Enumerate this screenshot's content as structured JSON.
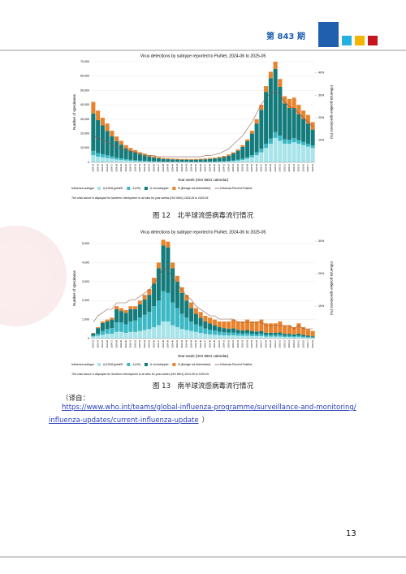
{
  "header": {
    "issue": "第 843 期"
  },
  "chart_data": [
    {
      "type": "bar",
      "stacked": true,
      "title": "Virus detections by subtype reported to FluNet, 2024-06 to 2025-05",
      "y_label": "Number of specimens",
      "y2_label": "Influenza positive specimens (%)",
      "x_label": "Year-week (ISO 8601 calendar)",
      "legend_title": "Influenza subtype",
      "note": "The chart above is displayed for Northern Hemisphere in all sites for year-weeks (ISO 8601) 2024-06 to 2025-05",
      "caption": "图 12　北半球流感病毒流行情况",
      "categories": [
        "2024-23",
        "2024-24",
        "2024-25",
        "2024-26",
        "2024-27",
        "2024-28",
        "2024-29",
        "2024-30",
        "2024-31",
        "2024-32",
        "2024-33",
        "2024-34",
        "2024-35",
        "2024-36",
        "2024-37",
        "2024-38",
        "2024-39",
        "2024-40",
        "2024-41",
        "2024-42",
        "2024-43",
        "2024-44",
        "2024-45",
        "2024-46",
        "2024-47",
        "2024-48",
        "2024-49",
        "2024-50",
        "2024-51",
        "2024-52",
        "2025-01",
        "2025-02",
        "2025-03",
        "2025-04",
        "2025-05",
        "2025-06",
        "2025-07",
        "2025-08",
        "2025-09",
        "2025-10",
        "2025-11",
        "2025-12",
        "2025-13",
        "2025-14",
        "2025-15",
        "2025-16",
        "2025-17",
        "2025-18"
      ],
      "ylim": [
        0,
        70000
      ],
      "yticks": [
        0,
        {
          "value": 10000,
          "label": "10,000"
        },
        {
          "value": 20000,
          "label": "20,000"
        },
        {
          "value": 30000,
          "label": "30,000"
        },
        {
          "value": 40000,
          "label": "40,000"
        },
        {
          "value": 50000,
          "label": "50,000"
        },
        {
          "value": 60000,
          "label": "60,000"
        },
        {
          "value": 70000,
          "label": "70,000"
        }
      ],
      "y2lim": [
        0,
        45
      ],
      "y2ticks": [
        {
          "value": 10,
          "label": "10%"
        },
        {
          "value": 20,
          "label": "20%"
        },
        {
          "value": 30,
          "label": "30%"
        },
        {
          "value": 40,
          "label": "40%"
        }
      ],
      "series": [
        {
          "name": "A (H1N1)pdm09",
          "color": "#a8e4ea",
          "values": [
            5000,
            4000,
            3500,
            3000,
            2500,
            2000,
            1700,
            1400,
            1100,
            900,
            700,
            600,
            500,
            400,
            350,
            300,
            280,
            260,
            250,
            240,
            240,
            230,
            240,
            250,
            270,
            300,
            350,
            400,
            500,
            600,
            900,
            1200,
            1700,
            2500,
            3500,
            5000,
            7000,
            10000,
            13000,
            17000,
            15000,
            13000,
            13000,
            14000,
            13000,
            12000,
            11000,
            10000
          ]
        },
        {
          "name": "A (H3)",
          "color": "#3cb8c4",
          "values": [
            3000,
            2500,
            2200,
            1900,
            1600,
            1300,
            1100,
            900,
            700,
            600,
            500,
            400,
            350,
            300,
            250,
            200,
            180,
            170,
            160,
            150,
            150,
            150,
            150,
            160,
            170,
            200,
            220,
            250,
            300,
            400,
            500,
            700,
            900,
            1200,
            1500,
            2000,
            2500,
            3000,
            3500,
            4000,
            3500,
            3000,
            2800,
            2800,
            2500,
            2200,
            2000,
            1800
          ]
        },
        {
          "name": "A not subtyped",
          "color": "#137b7b",
          "values": [
            26000,
            23000,
            20000,
            17000,
            14000,
            11500,
            9500,
            7500,
            6300,
            5300,
            4400,
            3800,
            3100,
            2600,
            2200,
            1900,
            1750,
            1600,
            1550,
            1500,
            1500,
            1450,
            1500,
            1550,
            1700,
            1900,
            2100,
            2500,
            2900,
            3600,
            4800,
            6200,
            8200,
            11000,
            15000,
            20000,
            27000,
            36000,
            42000,
            44000,
            34000,
            25000,
            22000,
            21000,
            18000,
            16000,
            14000,
            11000
          ]
        },
        {
          "name": "B (lineage not determined)",
          "color": "#e8822c",
          "values": [
            8000,
            6500,
            5300,
            5100,
            3900,
            3200,
            2700,
            2200,
            1900,
            1700,
            1400,
            1200,
            1050,
            900,
            700,
            600,
            590,
            570,
            540,
            510,
            510,
            470,
            510,
            540,
            560,
            600,
            630,
            650,
            800,
            900,
            800,
            900,
            1200,
            1300,
            2000,
            3000,
            3500,
            4000,
            4500,
            5000,
            5500,
            5000,
            6200,
            7200,
            6500,
            5800,
            6000,
            5200
          ]
        },
        {
          "name": "Influenza Percent Positive",
          "color": "#8c5a4a",
          "type": "line",
          "axis": "y2",
          "values": [
            12,
            11,
            10,
            9,
            8,
            7,
            6,
            5.5,
            5,
            4.5,
            4,
            3.5,
            3,
            3,
            2.5,
            2.5,
            2.5,
            2.5,
            2.5,
            2.5,
            2.5,
            2.5,
            2.5,
            2.5,
            3,
            3,
            3.5,
            4,
            5,
            6,
            8,
            10,
            12,
            15,
            18,
            22,
            26,
            29,
            31,
            32,
            30,
            27,
            25,
            24,
            22,
            20,
            18,
            16
          ]
        }
      ]
    },
    {
      "type": "bar",
      "stacked": true,
      "title": "Virus detections by subtype reported to FluNet, 2024-06 to 2025-05",
      "y_label": "Number of specimens",
      "y2_label": "Influenza positive specimens (%)",
      "x_label": "Year-week (ISO 8601 calendar)",
      "legend_title": "Influenza subtype",
      "note": "The chart above is displayed for Southern Hemisphere in all sites for year-weeks (ISO 8601) 2024-06 to 2025-05",
      "caption": "图 13　南半球流感病毒流行情况",
      "categories": [
        "2024-23",
        "2024-24",
        "2024-25",
        "2024-26",
        "2024-27",
        "2024-28",
        "2024-29",
        "2024-30",
        "2024-31",
        "2024-32",
        "2024-33",
        "2024-34",
        "2024-35",
        "2024-36",
        "2024-37",
        "2024-38",
        "2024-39",
        "2024-40",
        "2024-41",
        "2024-42",
        "2024-43",
        "2024-44",
        "2024-45",
        "2024-46",
        "2024-47",
        "2024-48",
        "2024-49",
        "2024-50",
        "2024-51",
        "2024-52",
        "2025-01",
        "2025-02",
        "2025-03",
        "2025-04",
        "2025-05",
        "2025-06",
        "2025-07",
        "2025-08",
        "2025-09",
        "2025-10",
        "2025-11",
        "2025-12",
        "2025-13",
        "2025-14",
        "2025-15",
        "2025-16",
        "2025-17",
        "2025-18"
      ],
      "ylim": [
        0,
        5300
      ],
      "yticks": [
        0,
        {
          "value": 1000,
          "label": "1,000"
        },
        {
          "value": 2000,
          "label": "2,000"
        },
        {
          "value": 3000,
          "label": "3,000"
        },
        {
          "value": 4000,
          "label": "4,000"
        },
        {
          "value": 5000,
          "label": "5,000"
        }
      ],
      "y2lim": [
        0,
        31
      ],
      "y2ticks": [
        {
          "value": 10,
          "label": "10%"
        },
        {
          "value": 20,
          "label": "20%"
        },
        {
          "value": 30,
          "label": "30%"
        }
      ],
      "series": [
        {
          "name": "A (H1N1)pdm09",
          "color": "#a8e4ea",
          "values": [
            100,
            150,
            200,
            250,
            250,
            350,
            350,
            300,
            350,
            350,
            400,
            450,
            500,
            600,
            700,
            900,
            900,
            700,
            600,
            500,
            450,
            400,
            350,
            300,
            250,
            220,
            200,
            180,
            170,
            160,
            170,
            150,
            140,
            150,
            130,
            120,
            130,
            100,
            100,
            100,
            100,
            80,
            80,
            70,
            80,
            60,
            50,
            40
          ]
        },
        {
          "name": "A (H3)",
          "color": "#3cb8c4",
          "values": [
            50,
            100,
            200,
            250,
            300,
            500,
            500,
            450,
            550,
            600,
            700,
            800,
            900,
            1100,
            1300,
            1600,
            1500,
            1200,
            1000,
            800,
            650,
            500,
            400,
            350,
            280,
            250,
            220,
            180,
            160,
            150,
            150,
            130,
            120,
            130,
            110,
            100,
            110,
            90,
            90,
            80,
            90,
            70,
            70,
            60,
            70,
            50,
            40,
            30
          ]
        },
        {
          "name": "A not subtyped",
          "color": "#137b7b",
          "values": [
            120,
            300,
            420,
            400,
            450,
            700,
            600,
            600,
            650,
            600,
            700,
            800,
            900,
            1200,
            1700,
            2400,
            2400,
            1800,
            1400,
            1100,
            900,
            700,
            550,
            450,
            370,
            320,
            280,
            240,
            220,
            200,
            220,
            180,
            170,
            170,
            160,
            150,
            160,
            120,
            120,
            120,
            130,
            100,
            100,
            90,
            110,
            80,
            60,
            50
          ]
        },
        {
          "name": "B (lineage not determined)",
          "color": "#e8822c",
          "values": [
            30,
            50,
            80,
            100,
            100,
            150,
            150,
            150,
            150,
            150,
            200,
            250,
            300,
            300,
            300,
            300,
            300,
            300,
            300,
            300,
            300,
            300,
            300,
            300,
            300,
            310,
            300,
            300,
            350,
            390,
            460,
            440,
            470,
            550,
            500,
            530,
            600,
            490,
            490,
            500,
            580,
            450,
            450,
            380,
            540,
            410,
            350,
            280
          ]
        },
        {
          "name": "Influenza Percent Positive",
          "color": "#8c5a4a",
          "type": "line",
          "axis": "y2",
          "values": [
            5,
            7,
            8,
            9,
            9,
            11,
            11,
            11,
            12,
            12,
            13,
            14,
            15,
            17,
            19,
            22,
            21,
            19,
            17,
            15,
            13,
            12,
            10,
            9,
            8,
            7,
            7,
            6,
            6,
            6,
            6,
            5,
            5,
            5,
            5,
            5,
            5,
            4,
            4,
            4,
            4,
            4,
            4,
            3,
            4,
            3,
            3,
            3
          ]
        }
      ]
    }
  ],
  "source": {
    "prefix": "（译自：",
    "link_line1": "https://www.who.int/teams/global-influenza-programme/surveillance-and-monitoring/",
    "link_line2": "influenza-updates/current-influenza-update",
    "suffix": "）"
  },
  "page_number": "13"
}
